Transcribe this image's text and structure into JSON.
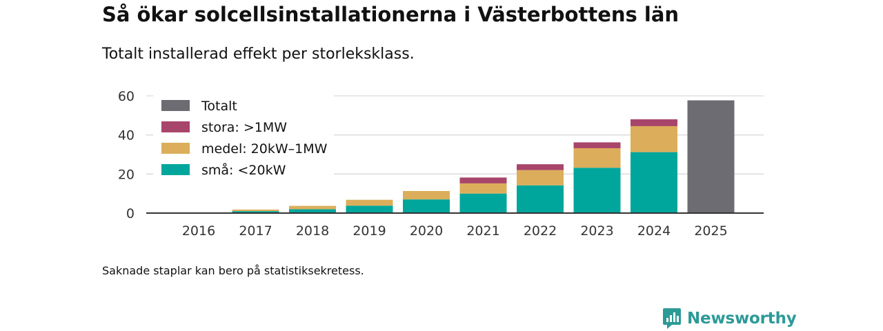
{
  "title": "Så ökar solcellsinstallationerna i Västerbottens län",
  "subtitle": "Totalt installerad effekt per storleksklass.",
  "footnote": "Saknade staplar kan bero på statistiksekretess.",
  "brand": {
    "name": "Newsworthy",
    "icon": "newsworthy-logo-icon"
  },
  "colors": {
    "small": "#00a69c",
    "medium": "#dcae5b",
    "large": "#a8456a",
    "total": "#6c6c72",
    "grid": "#d9d9d9",
    "axis": "#333333",
    "brand": "#2c9a97"
  },
  "chart_data": {
    "type": "bar",
    "stacked": true,
    "categories": [
      "2016",
      "2017",
      "2018",
      "2019",
      "2020",
      "2021",
      "2022",
      "2023",
      "2024",
      "2025"
    ],
    "series": [
      {
        "name": "små: <20kW",
        "key": "small",
        "values": [
          0.2,
          1.0,
          2.0,
          3.8,
          7.0,
          10.0,
          14.2,
          23.2,
          31.2,
          null
        ]
      },
      {
        "name": "medel: 20kW–1MW",
        "key": "medium",
        "values": [
          0.1,
          0.8,
          1.7,
          3.0,
          4.3,
          5.2,
          7.8,
          10.0,
          13.3,
          null
        ]
      },
      {
        "name": "stora: >1MW",
        "key": "large",
        "values": [
          null,
          null,
          null,
          null,
          null,
          3.0,
          3.0,
          3.0,
          3.5,
          null
        ]
      },
      {
        "name": "Totalt",
        "key": "total",
        "values": [
          null,
          null,
          null,
          null,
          null,
          null,
          null,
          null,
          null,
          57.7
        ]
      }
    ],
    "legend": [
      "Totalt",
      "stora: >1MW",
      "medel: 20kW–1MW",
      "små: <20kW"
    ],
    "legend_keys": [
      "total",
      "large",
      "medium",
      "small"
    ],
    "legend_position": "top-left",
    "yticks": [
      0,
      20,
      40,
      60
    ],
    "ylim": [
      0,
      60
    ],
    "xlabel": "",
    "ylabel": "",
    "grid": true
  }
}
